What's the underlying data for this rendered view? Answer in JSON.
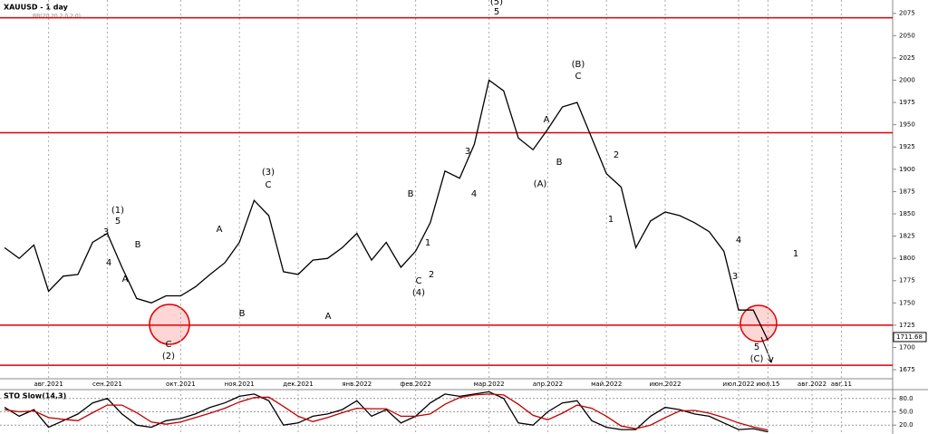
{
  "chart_data": [
    {
      "type": "line",
      "title": "XAUUSD - 1 day",
      "subtitle": "BB(20,20,2,0,2,0)",
      "categories": [
        null,
        null,
        null,
        "авг.2021",
        null,
        null,
        null,
        "сен.2021",
        null,
        null,
        null,
        null,
        "окт.2021",
        null,
        null,
        null,
        "ноя.2021",
        null,
        null,
        null,
        "дек.2021",
        null,
        null,
        null,
        "янв.2022",
        null,
        null,
        null,
        "фев.2022",
        null,
        null,
        null,
        null,
        "мар.2022",
        null,
        null,
        null,
        "апр.2022",
        null,
        null,
        null,
        "май.2022",
        null,
        null,
        null,
        "июн.2022",
        null,
        null,
        null,
        null,
        "июл.2022",
        null,
        "июл.15",
        null,
        null,
        "авг.2022",
        null,
        "авг.11"
      ],
      "values": [
        1812,
        1800,
        1815,
        1763,
        1780,
        1782,
        1818,
        1828,
        1790,
        1755,
        1750,
        1758,
        1758,
        1768,
        1782,
        1795,
        1818,
        1865,
        1848,
        1785,
        1782,
        1798,
        1800,
        1812,
        1828,
        1798,
        1818,
        1790,
        1808,
        1840,
        1898,
        1890,
        1928,
        2000,
        1988,
        1935,
        1922,
        1945,
        1970,
        1975,
        1935,
        1895,
        1880,
        1812,
        1842,
        1852,
        1848,
        1840,
        1830,
        1808,
        1742,
        1742,
        1708,
        null,
        null,
        null,
        null,
        null
      ],
      "color": "#000000",
      "ylim": [
        1671,
        2090
      ],
      "yticks": [
        1675,
        1700,
        1725,
        1750,
        1775,
        1800,
        1825,
        1850,
        1875,
        1900,
        1925,
        1950,
        1975,
        2000,
        2025,
        2050,
        2075
      ],
      "levels": [
        2070,
        1941,
        1725,
        1680
      ],
      "level_color": "#e00000",
      "last_price": 1711.68,
      "annotations": [
        "(1)",
        "5",
        "3",
        "4",
        "A",
        "B",
        "C",
        "(2)",
        "(3)",
        "C",
        "A",
        "B",
        "A",
        "B",
        "C",
        "(4)",
        "1",
        "2",
        "(5)",
        "5",
        "3",
        "4",
        "(A)",
        "A",
        "B",
        "(B)",
        "C",
        "2",
        "1",
        "4",
        "3",
        "5",
        "(C)",
        "1"
      ]
    },
    {
      "type": "line",
      "title": "STO Slow(14,3)",
      "series": [
        {
          "color": "#000000",
          "values": [
            60,
            40,
            55,
            15,
            30,
            45,
            70,
            80,
            45,
            20,
            15,
            30,
            35,
            45,
            60,
            70,
            85,
            90,
            75,
            20,
            25,
            40,
            45,
            55,
            75,
            40,
            55,
            25,
            40,
            70,
            90,
            85,
            90,
            95,
            80,
            25,
            20,
            50,
            70,
            75,
            30,
            15,
            10,
            10,
            40,
            60,
            55,
            45,
            40,
            25,
            10,
            12,
            5
          ]
        },
        {
          "color": "#c00000",
          "values": [
            55,
            50,
            52,
            37,
            33,
            30,
            48,
            65,
            65,
            48,
            27,
            22,
            27,
            37,
            47,
            58,
            72,
            82,
            83,
            62,
            40,
            28,
            37,
            48,
            58,
            57,
            57,
            40,
            40,
            45,
            67,
            82,
            88,
            90,
            88,
            67,
            42,
            32,
            47,
            65,
            58,
            40,
            18,
            12,
            20,
            37,
            52,
            53,
            47,
            37,
            25,
            16,
            9
          ]
        }
      ],
      "ylim": [
        0,
        100
      ],
      "yticks": [
        {
          "value": 20,
          "label": "20.0"
        },
        {
          "value": 50,
          "label": "50.0"
        },
        {
          "value": 80,
          "label": "80.0"
        }
      ]
    }
  ]
}
